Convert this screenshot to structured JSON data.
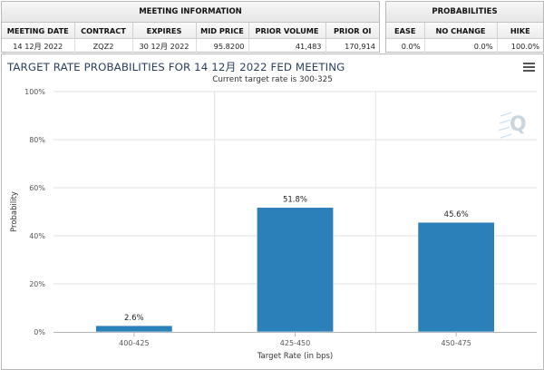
{
  "meeting_info": {
    "title": "MEETING INFORMATION",
    "columns": [
      "MEETING DATE",
      "CONTRACT",
      "EXPIRES",
      "MID PRICE",
      "PRIOR VOLUME",
      "PRIOR OI"
    ],
    "row": [
      "14 12月 2022",
      "ZQZ2",
      "30 12月 2022",
      "95.8200",
      "41,483",
      "170,914"
    ]
  },
  "probabilities": {
    "title": "PROBABILITIES",
    "columns": [
      "EASE",
      "NO CHANGE",
      "HIKE"
    ],
    "row": [
      "0.0%",
      "0.0%",
      "100.0%"
    ]
  },
  "chart": {
    "title": "TARGET RATE PROBABILITIES FOR 14 12月 2022 FED MEETING",
    "subtitle": "Current target rate is 300-325",
    "menu_icon": "hamburger-menu-icon",
    "watermark_icon": "q-logo-icon",
    "bar_color": "#2c80b9"
  },
  "chart_data": {
    "type": "bar",
    "title": "TARGET RATE PROBABILITIES FOR 14 12月 2022 FED MEETING",
    "subtitle": "Current target rate is 300-325",
    "categories": [
      "400-425",
      "425-450",
      "450-475"
    ],
    "values": [
      2.6,
      51.8,
      45.6
    ],
    "value_labels": [
      "2.6%",
      "51.8%",
      "45.6%"
    ],
    "xlabel": "Target Rate (in bps)",
    "ylabel": "Probability",
    "ylim": [
      0,
      100
    ],
    "yticks": [
      0,
      20,
      40,
      60,
      80,
      100
    ],
    "ytick_labels": [
      "0%",
      "20%",
      "40%",
      "60%",
      "80%",
      "100%"
    ],
    "grid": true,
    "legend": "none"
  }
}
